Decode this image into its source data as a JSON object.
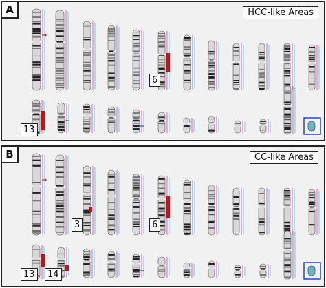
{
  "panel_a": {
    "letter": "A",
    "label": "HCC-like Areas",
    "highlighted_chromosomes": [
      "6",
      "13"
    ]
  },
  "panel_b": {
    "letter": "B",
    "label": "CC-like Areas",
    "highlighted_chromosomes": [
      "3",
      "6",
      "13",
      "14"
    ]
  },
  "colors": {
    "panel_border": "#222222",
    "panel_bg": "#f1f1f1",
    "cnv_red": "#c0141c",
    "line_magenta": "#e040c0",
    "line_cyan": "#40c8d8",
    "box_blue": "#3050d0",
    "band_dark": "#222222",
    "band_light": "#d8d8d8"
  }
}
